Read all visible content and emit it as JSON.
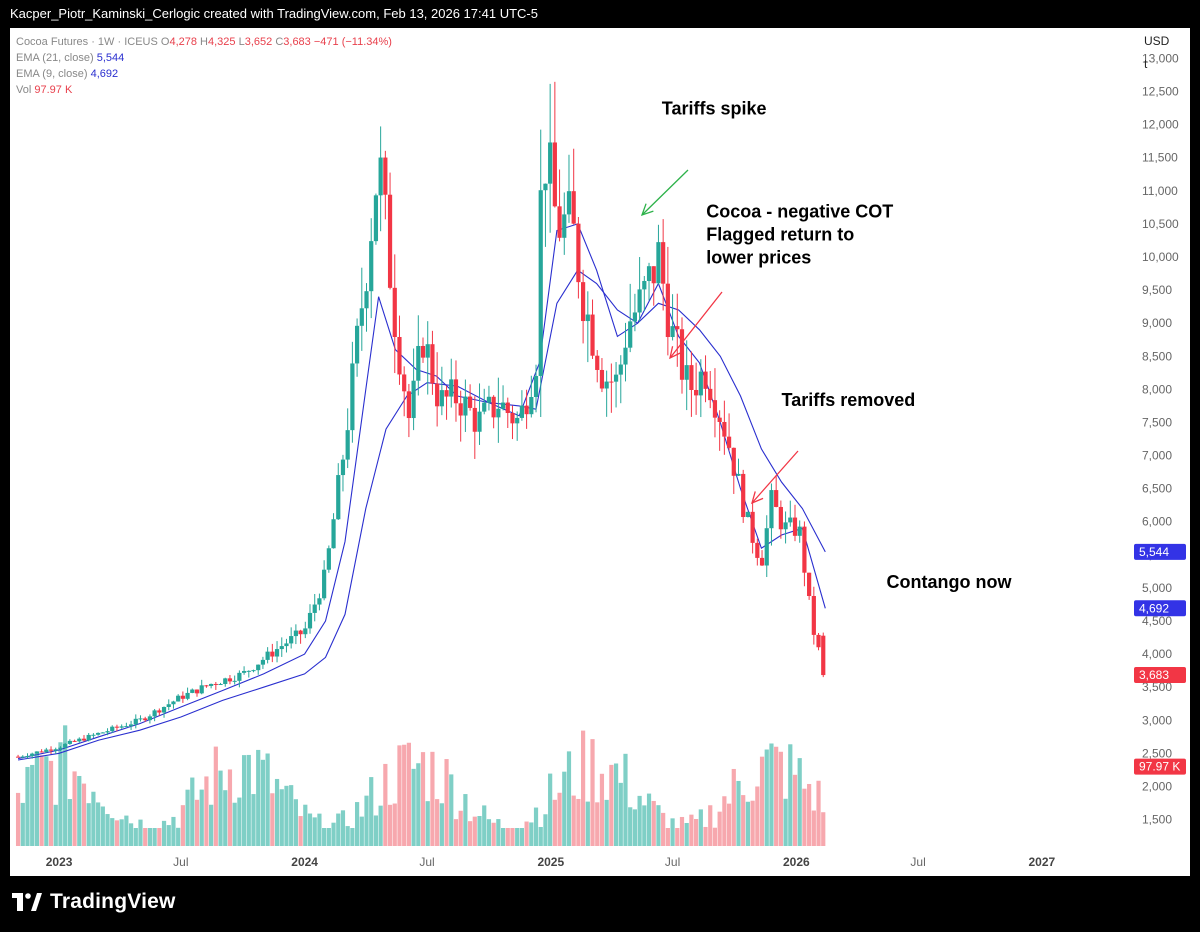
{
  "header": {
    "text": "Kacper_Piotr_Kaminski_Cerlogic created with TradingView.com, Feb 13, 2026 17:41 UTC-5"
  },
  "legend": {
    "symbol": "Cocoa Futures · 1W · ICEUS",
    "o_label": "O",
    "o_val": "4,278",
    "h_label": "H",
    "h_val": "4,325",
    "l_label": "L",
    "l_val": "3,652",
    "c_label": "C",
    "c_val": "3,683",
    "change": "−471 (−11.34%)",
    "ema21_label": "EMA (21, close)",
    "ema21_val": "5,544",
    "ema9_label": "EMA (9, close)",
    "ema9_val": "4,692",
    "vol_label": "Vol",
    "vol_val": "97.97 K"
  },
  "currency": "USD",
  "unit": "t",
  "footer": {
    "brand": "TradingView"
  },
  "colors": {
    "up": "#26a69a",
    "down": "#f23645",
    "ema": "#2a2fcf",
    "vol_up": "#7fcfc6",
    "vol_down": "#f7a8ae"
  },
  "chart_data": {
    "type": "candlestick",
    "title": "Cocoa Futures · 1W · ICEUS",
    "ylabel": "USD",
    "ylim": [
      1100,
      13400
    ],
    "y_ticks": [
      "1,500",
      "2,000",
      "2,500",
      "3,000",
      "3,500",
      "4,000",
      "4,500",
      "5,000",
      "5,500",
      "6,000",
      "6,500",
      "7,000",
      "7,500",
      "8,000",
      "8,500",
      "9,000",
      "9,500",
      "10,000",
      "10,500",
      "11,000",
      "11,500",
      "12,000",
      "12,500",
      "13,000"
    ],
    "y_tick_values": [
      1500,
      2000,
      2500,
      3000,
      3500,
      4000,
      4500,
      5000,
      5500,
      6000,
      6500,
      7000,
      7500,
      8000,
      8500,
      9000,
      9500,
      10000,
      10500,
      11000,
      11500,
      12000,
      12500,
      13000
    ],
    "x_ticks": [
      {
        "label": "2023",
        "date": "2023-01-01",
        "bold": true
      },
      {
        "label": "Jul",
        "date": "2023-07-01",
        "bold": false
      },
      {
        "label": "2024",
        "date": "2024-01-01",
        "bold": true
      },
      {
        "label": "Jul",
        "date": "2024-07-01",
        "bold": false
      },
      {
        "label": "2025",
        "date": "2025-01-01",
        "bold": true
      },
      {
        "label": "Jul",
        "date": "2025-07-01",
        "bold": false
      },
      {
        "label": "2026",
        "date": "2026-01-01",
        "bold": true
      },
      {
        "label": "Jul",
        "date": "2026-07-01",
        "bold": false
      },
      {
        "label": "2027",
        "date": "2027-01-01",
        "bold": true
      }
    ],
    "x_range": [
      "2022-10-20",
      "2027-05-15"
    ],
    "price_series": {
      "name": "Cocoa Futures weekly close",
      "dates": [
        "2022-11-01",
        "2023-01-01",
        "2023-03-01",
        "2023-05-01",
        "2023-07-01",
        "2023-08-15",
        "2023-10-01",
        "2023-12-01",
        "2024-01-01",
        "2024-02-01",
        "2024-03-01",
        "2024-04-01",
        "2024-04-20",
        "2024-05-15",
        "2024-06-05",
        "2024-06-25",
        "2024-07-20",
        "2024-08-15",
        "2024-09-15",
        "2024-10-15",
        "2024-11-15",
        "2024-12-10",
        "2024-12-20",
        "2025-01-10",
        "2025-02-01",
        "2025-02-20",
        "2025-03-20",
        "2025-04-10",
        "2025-04-25",
        "2025-05-15",
        "2025-06-10",
        "2025-07-01",
        "2025-07-25",
        "2025-08-20",
        "2025-09-20",
        "2025-10-20",
        "2025-11-10",
        "2025-11-25",
        "2025-12-15",
        "2026-01-05",
        "2026-01-25",
        "2026-02-13"
      ],
      "values": [
        2450,
        2600,
        2800,
        3000,
        3350,
        3550,
        3700,
        4150,
        4350,
        5200,
        7200,
        9800,
        11500,
        9000,
        7500,
        8800,
        7800,
        7900,
        7500,
        7800,
        7500,
        8500,
        11800,
        10500,
        10500,
        9300,
        8200,
        8100,
        9000,
        9300,
        10000,
        8800,
        8000,
        8300,
        7300,
        6000,
        5400,
        6300,
        5900,
        5900,
        4400,
        3683
      ]
    },
    "ema21": {
      "name": "EMA (21, close)",
      "dates": [
        "2022-11-01",
        "2023-01-01",
        "2023-03-01",
        "2023-05-01",
        "2023-07-01",
        "2023-09-01",
        "2023-11-01",
        "2024-01-01",
        "2024-02-01",
        "2024-03-01",
        "2024-04-01",
        "2024-05-01",
        "2024-06-01",
        "2024-07-01",
        "2024-08-15",
        "2024-10-01",
        "2024-11-15",
        "2024-12-10",
        "2025-01-10",
        "2025-02-10",
        "2025-03-10",
        "2025-04-10",
        "2025-05-10",
        "2025-06-10",
        "2025-07-10",
        "2025-08-10",
        "2025-09-10",
        "2025-10-10",
        "2025-11-10",
        "2025-12-10",
        "2026-01-10",
        "2026-02-13"
      ],
      "values": [
        2400,
        2500,
        2700,
        2850,
        3050,
        3300,
        3500,
        3700,
        3950,
        4600,
        6200,
        7400,
        7900,
        8100,
        8050,
        7800,
        7750,
        7700,
        9300,
        9800,
        9600,
        9200,
        9000,
        9300,
        9200,
        8900,
        8500,
        7900,
        7100,
        6600,
        6200,
        5544
      ]
    },
    "ema9": {
      "name": "EMA (9, close)",
      "dates": [
        "2022-11-01",
        "2023-01-01",
        "2023-03-01",
        "2023-05-01",
        "2023-07-01",
        "2023-09-01",
        "2023-11-01",
        "2024-01-01",
        "2024-02-01",
        "2024-03-01",
        "2024-04-01",
        "2024-04-20",
        "2024-05-15",
        "2024-06-15",
        "2024-07-15",
        "2024-08-15",
        "2024-10-01",
        "2024-11-15",
        "2024-12-15",
        "2025-01-10",
        "2025-02-10",
        "2025-03-10",
        "2025-04-10",
        "2025-05-10",
        "2025-06-10",
        "2025-07-10",
        "2025-08-10",
        "2025-09-10",
        "2025-10-10",
        "2025-11-10",
        "2025-12-10",
        "2026-01-10",
        "2026-02-13"
      ],
      "values": [
        2420,
        2550,
        2750,
        2950,
        3200,
        3450,
        3700,
        4000,
        4500,
        5700,
        8000,
        9400,
        8600,
        8300,
        8200,
        7900,
        7800,
        7600,
        8400,
        10400,
        10500,
        9800,
        8800,
        9000,
        9600,
        8800,
        8400,
        7500,
        6500,
        5600,
        5800,
        5900,
        4692
      ]
    },
    "volume": {
      "name": "Vol",
      "max_k": 300,
      "last_k": 97.97
    },
    "last_values": {
      "ema21": "5,544",
      "ema9": "4,692",
      "close": "3,683",
      "vol": "97.97 K"
    },
    "annotations": [
      {
        "text": "Tariffs spike",
        "date": "2025-06-15",
        "value": 12150
      },
      {
        "text": "Cocoa - negative COT",
        "date": "2025-08-20",
        "value": 10600
      },
      {
        "text": "Flagged return to",
        "date": "2025-08-20",
        "value": 10250
      },
      {
        "text": "lower prices",
        "date": "2025-08-20",
        "value": 9900
      },
      {
        "text": "Tariffs removed",
        "date": "2025-12-10",
        "value": 7750
      },
      {
        "text": "Contango now",
        "date": "2026-05-15",
        "value": 5000
      }
    ]
  }
}
